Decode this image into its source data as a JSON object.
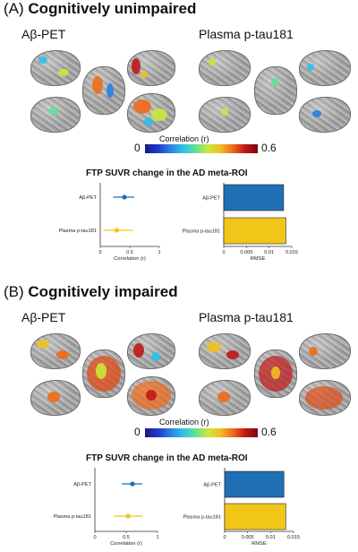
{
  "panels": [
    {
      "label": "(A)",
      "title": "Cognitively unimpaired",
      "left_title": "Aβ-PET",
      "right_title": "Plasma p-tau181",
      "colorbar": {
        "title": "Correlation (r)",
        "min": "0",
        "max": "0.6"
      },
      "sub_title": "FTP SUVR change in the AD meta-ROI"
    },
    {
      "label": "(B)",
      "title": "Cognitively impaired",
      "left_title": "Aβ-PET",
      "right_title": "Plasma p-tau181",
      "colorbar": {
        "title": "Correlation (r)",
        "min": "0",
        "max": "0.6"
      },
      "sub_title": "FTP SUVR change in the AD meta-ROI"
    }
  ],
  "colors": {
    "abeta": "#1f6fb4",
    "ptau": "#f2c618",
    "bar_border": "#222222"
  },
  "chart_data": [
    {
      "type": "scatter",
      "panel": "A",
      "categories": [
        "Aβ-PET",
        "Plasma p-tau181"
      ],
      "values": [
        0.41,
        0.28
      ],
      "ci_low": [
        0.22,
        0.06
      ],
      "ci_high": [
        0.58,
        0.55
      ],
      "xlabel": "Correlation (r)",
      "xticks": [
        "0",
        "0.5",
        "1"
      ],
      "xlim": [
        0,
        1
      ]
    },
    {
      "type": "bar",
      "panel": "A",
      "categories": [
        "Aβ-PET",
        "Plasma p-tau181"
      ],
      "values": [
        0.0132,
        0.0137
      ],
      "xlabel": "RMSE",
      "xticks": [
        "0",
        "0.005",
        "0.01",
        "0.015"
      ],
      "xlim": [
        0,
        0.015
      ]
    },
    {
      "type": "scatter",
      "panel": "B",
      "categories": [
        "Aβ-PET",
        "Plasma p-tau181"
      ],
      "values": [
        0.6,
        0.53
      ],
      "ci_low": [
        0.43,
        0.3
      ],
      "ci_high": [
        0.76,
        0.76
      ],
      "xlabel": "Correlation (r)",
      "xticks": [
        "0",
        "0.5",
        "1"
      ],
      "xlim": [
        0,
        1
      ]
    },
    {
      "type": "bar",
      "panel": "B",
      "categories": [
        "Aβ-PET",
        "Plasma p-tau181"
      ],
      "values": [
        0.0129,
        0.0133
      ],
      "xlabel": "RMSE",
      "xticks": [
        "0",
        "0.005",
        "0.01",
        "0.015"
      ],
      "xlim": [
        0,
        0.015
      ]
    }
  ]
}
